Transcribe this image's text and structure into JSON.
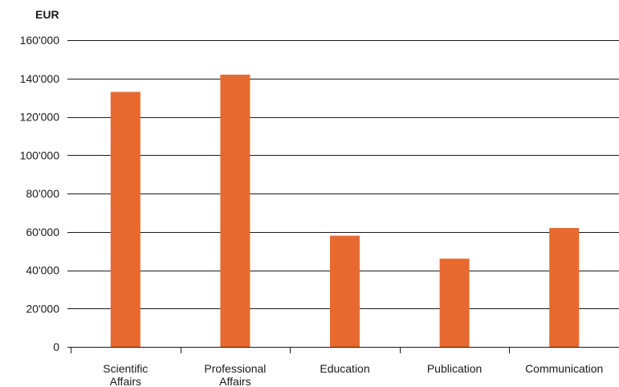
{
  "chart_data": {
    "type": "bar",
    "unit_label": "EUR",
    "categories": [
      [
        "Scientific",
        "Affairs"
      ],
      [
        "Professional",
        "Affairs"
      ],
      [
        "Education"
      ],
      [
        "Publication"
      ],
      [
        "Communication"
      ]
    ],
    "values": [
      133000,
      142000,
      58000,
      46000,
      62000
    ],
    "ylim": [
      0,
      160000
    ],
    "yticks": [
      0,
      20000,
      40000,
      60000,
      80000,
      100000,
      120000,
      140000,
      160000
    ],
    "ytick_labels": [
      "0",
      "20'000",
      "40'000",
      "60'000",
      "80'000",
      "100'000",
      "120'000",
      "140'000",
      "160'000"
    ],
    "bar_color": "#e8692f",
    "grid": true,
    "legend": "none"
  }
}
